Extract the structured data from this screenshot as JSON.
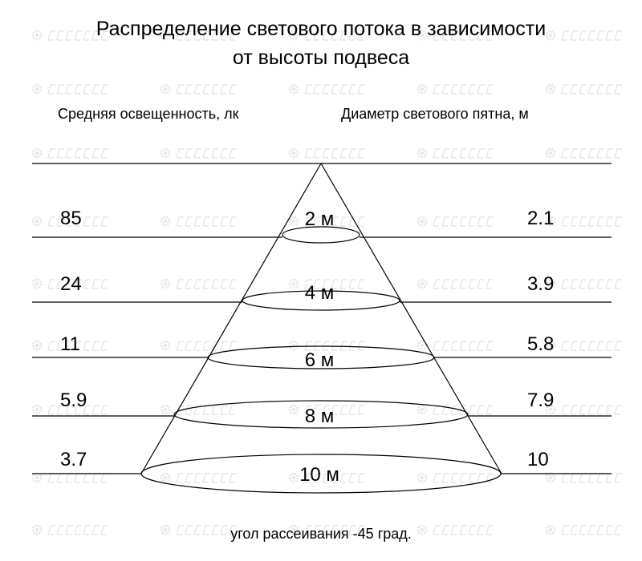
{
  "title_line1": "Распределение светового потока в зависимости",
  "title_line2": "от высоты подвеса",
  "left_header": "Средняя освещенность, лк",
  "right_header": "Диаметр светового пятна, м",
  "rows": [
    {
      "illuminance": "85",
      "height": "2 м",
      "diameter": "2.1"
    },
    {
      "illuminance": "24",
      "height": "4 м",
      "diameter": "3.9"
    },
    {
      "illuminance": "11",
      "height": "6 м",
      "diameter": "5.8"
    },
    {
      "illuminance": "5.9",
      "height": "8 м",
      "diameter": "7.9"
    },
    {
      "illuminance": "3.7",
      "height": "10 м",
      "diameter": "10"
    }
  ],
  "footer": "угол рассеивания -45 град.",
  "watermark": "LEDPROM",
  "colors": {
    "line": "#000000",
    "watermark": "#e6e6e6"
  }
}
